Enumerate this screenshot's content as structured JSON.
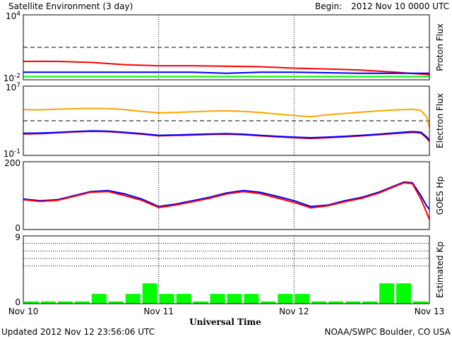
{
  "header": {
    "title": "Satellite Environment (3 day)",
    "begin_label": "Begin:",
    "begin_value": "2012 Nov 10 0000 UTC"
  },
  "footer": {
    "updated": "Updated 2012 Nov 12 23:56:06 UTC",
    "credit": "NOAA/SWPC Boulder, CO USA",
    "xlabel": "Universal Time"
  },
  "colors": {
    "red": "#ff0000",
    "blue": "#0000ff",
    "green": "#00ff00",
    "orange": "#ffa500",
    "frame": "#000000"
  },
  "chart_data": [
    {
      "type": "line",
      "ylabel": "Proton Flux",
      "yscale": "log",
      "ylim": [
        0.01,
        10000
      ],
      "yticks": [
        {
          "base": "10",
          "exp": "4",
          "value": 10000
        },
        {
          "base": "10",
          "exp": "-2",
          "value": 0.01
        }
      ],
      "threshold": 10,
      "x": [
        0,
        6,
        12,
        18,
        24,
        30,
        36,
        42,
        48,
        54,
        60,
        66,
        72
      ],
      "series": [
        {
          "color": "#ff0000",
          "values": [
            0.5,
            0.5,
            0.4,
            0.25,
            0.2,
            0.2,
            0.18,
            0.16,
            0.12,
            0.1,
            0.08,
            0.05,
            0.03
          ]
        },
        {
          "color": "#0000ff",
          "values": [
            0.05,
            0.05,
            0.05,
            0.05,
            0.05,
            0.05,
            0.04,
            0.05,
            0.05,
            0.045,
            0.04,
            0.04,
            0.04
          ]
        },
        {
          "color": "#00ff00",
          "values": [
            0.02,
            0.02,
            0.02,
            0.02,
            0.02,
            0.02,
            0.02,
            0.02,
            0.02,
            0.02,
            0.02,
            0.02,
            0.02
          ]
        }
      ]
    },
    {
      "type": "line",
      "ylabel": "Electron Flux",
      "yscale": "log",
      "ylim": [
        0.1,
        10000000
      ],
      "yticks": [
        {
          "base": "10",
          "exp": "7",
          "value": 10000000
        },
        {
          "base": "10",
          "exp": "-1",
          "value": 0.1
        }
      ],
      "threshold": 1000,
      "x": [
        0,
        3,
        6,
        9,
        12,
        15,
        18,
        21,
        24,
        27,
        30,
        33,
        36,
        39,
        42,
        45,
        48,
        51,
        54,
        57,
        60,
        63,
        66,
        69,
        70.5,
        71.5,
        72
      ],
      "series": [
        {
          "color": "#ffa500",
          "values": [
            20000,
            18000,
            22000,
            25000,
            27000,
            26000,
            20000,
            12000,
            8000,
            9000,
            11000,
            13000,
            14000,
            12000,
            9000,
            6000,
            4000,
            3000,
            5000,
            7000,
            10000,
            14000,
            18000,
            22000,
            15000,
            3000,
            200
          ]
        },
        {
          "color": "#ff0000",
          "values": [
            30,
            32,
            40,
            50,
            60,
            55,
            40,
            28,
            18,
            20,
            22,
            26,
            28,
            24,
            18,
            14,
            11,
            9,
            11,
            14,
            18,
            24,
            34,
            45,
            38,
            10,
            4
          ]
        },
        {
          "color": "#0000ff",
          "values": [
            35,
            38,
            45,
            56,
            68,
            62,
            46,
            32,
            21,
            23,
            26,
            30,
            32,
            28,
            21,
            16,
            13,
            11,
            13,
            16,
            21,
            28,
            40,
            55,
            48,
            14,
            6
          ]
        }
      ]
    },
    {
      "type": "line",
      "ylabel": "GOES Hp",
      "ylim": [
        0,
        200
      ],
      "yticks": [
        {
          "label": "200",
          "value": 200
        },
        {
          "label": "0",
          "value": 0
        }
      ],
      "x": [
        0,
        3,
        6,
        9,
        12,
        15,
        18,
        21,
        24,
        27,
        30,
        33,
        36,
        39,
        42,
        45,
        48,
        51,
        54,
        57,
        60,
        63,
        66,
        67.5,
        69,
        70.5,
        71.5,
        72
      ],
      "series": [
        {
          "color": "#0000ff",
          "values": [
            90,
            85,
            88,
            100,
            112,
            115,
            105,
            90,
            68,
            75,
            85,
            95,
            108,
            115,
            110,
            98,
            85,
            68,
            72,
            85,
            95,
            110,
            130,
            140,
            138,
            100,
            70,
            60
          ]
        },
        {
          "color": "#ff0000",
          "values": [
            88,
            83,
            86,
            98,
            110,
            112,
            100,
            86,
            65,
            72,
            82,
            92,
            105,
            112,
            106,
            93,
            80,
            64,
            70,
            82,
            92,
            107,
            128,
            138,
            135,
            90,
            50,
            30
          ]
        }
      ]
    },
    {
      "type": "bar",
      "ylabel": "Estimated Kp",
      "ylim": [
        0,
        9
      ],
      "yticks": [
        {
          "label": "9",
          "value": 9
        },
        {
          "label": "0",
          "value": 0
        }
      ],
      "gridlines": [
        5,
        6,
        7,
        8,
        9
      ],
      "bar_interval_hours": 3,
      "color": "#00ff00",
      "values": [
        0.3,
        0.3,
        0.3,
        0.3,
        1.3,
        0.3,
        1.3,
        2.7,
        1.3,
        1.3,
        0.3,
        1.3,
        1.3,
        1.3,
        0.3,
        1.3,
        1.3,
        0.3,
        0.3,
        0.3,
        0.3,
        2.7,
        2.7,
        0.3
      ]
    }
  ],
  "xaxis": {
    "hours": 72,
    "ticks": [
      {
        "hour": 0,
        "label": "Nov 10"
      },
      {
        "hour": 24,
        "label": "Nov 11"
      },
      {
        "hour": 48,
        "label": "Nov 12"
      },
      {
        "hour": 72,
        "label": "Nov 13"
      }
    ]
  }
}
